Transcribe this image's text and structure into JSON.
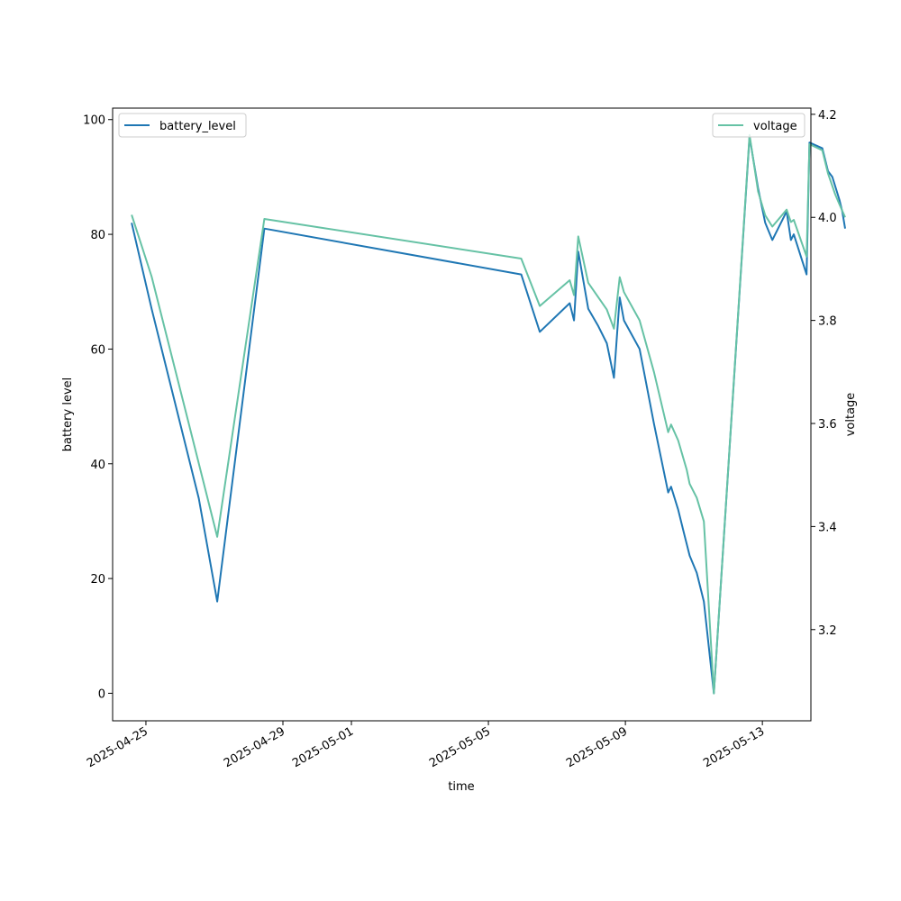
{
  "chart_data": {
    "type": "line",
    "xlabel": "time",
    "ylabel_left": "battery level",
    "ylabel_right": "voltage",
    "x_ticks": [
      "2025-04-25",
      "2025-04-29",
      "2025-05-01",
      "2025-05-05",
      "2025-05-09",
      "2025-05-13"
    ],
    "x_range": [
      "2025-04-24T00:40",
      "2025-05-14T10:00"
    ],
    "y_left_ticks": [
      0,
      20,
      40,
      60,
      80,
      100
    ],
    "y_left_range": [
      -4.8,
      102
    ],
    "y_right_ticks": [
      3.2,
      3.4,
      3.6,
      3.8,
      4.0,
      4.2
    ],
    "y_right_range": [
      3.023,
      4.212
    ],
    "legend_left": {
      "position": "upper-left",
      "label": "battery_level"
    },
    "legend_right": {
      "position": "upper-right",
      "label": "voltage"
    },
    "grid": false,
    "series": [
      {
        "name": "battery_level",
        "axis": "left",
        "color": "#1f77b4",
        "points": [
          [
            "2025-04-24T14:00",
            82
          ],
          [
            "2025-04-25T04:00",
            67
          ],
          [
            "2025-04-26T13:00",
            34
          ],
          [
            "2025-04-27T02:00",
            16
          ],
          [
            "2025-04-28T11:00",
            81
          ],
          [
            "2025-05-05T23:00",
            73
          ],
          [
            "2025-05-06T12:00",
            63
          ],
          [
            "2025-05-07T09:00",
            68
          ],
          [
            "2025-05-07T12:00",
            65
          ],
          [
            "2025-05-07T15:00",
            77
          ],
          [
            "2025-05-07T22:00",
            67
          ],
          [
            "2025-05-08T05:00",
            64
          ],
          [
            "2025-05-08T11:00",
            61
          ],
          [
            "2025-05-08T16:00",
            55
          ],
          [
            "2025-05-08T20:00",
            69
          ],
          [
            "2025-05-08T23:00",
            65
          ],
          [
            "2025-05-09T10:00",
            60
          ],
          [
            "2025-05-09T20:00",
            47
          ],
          [
            "2025-05-10T06:00",
            35
          ],
          [
            "2025-05-10T08:00",
            36
          ],
          [
            "2025-05-10T13:00",
            32
          ],
          [
            "2025-05-10T17:00",
            28
          ],
          [
            "2025-05-10T21:00",
            24
          ],
          [
            "2025-05-11T02:00",
            21
          ],
          [
            "2025-05-11T07:00",
            16
          ],
          [
            "2025-05-11T14:00",
            0
          ],
          [
            "2025-05-12T15:00",
            97
          ],
          [
            "2025-05-12T21:00",
            88
          ],
          [
            "2025-05-13T02:00",
            82
          ],
          [
            "2025-05-13T07:00",
            79
          ],
          [
            "2025-05-13T17:00",
            84
          ],
          [
            "2025-05-13T20:00",
            79
          ],
          [
            "2025-05-13T22:00",
            80
          ],
          [
            "2025-05-14T07:00",
            73
          ],
          [
            "2025-05-14T09:00",
            96
          ],
          [
            "2025-05-14T18:00",
            95
          ],
          [
            "2025-05-14T22:00",
            91
          ],
          [
            "2025-05-15T01:00",
            90
          ],
          [
            "2025-05-15T06:00",
            86
          ],
          [
            "2025-05-15T08:00",
            84
          ],
          [
            "2025-05-15T10:00",
            81
          ]
        ]
      },
      {
        "name": "voltage",
        "axis": "right",
        "color": "#66c2a5",
        "points": [
          [
            "2025-04-24T14:00",
            4.005
          ],
          [
            "2025-04-25T04:00",
            3.885
          ],
          [
            "2025-04-26T06:00",
            3.6
          ],
          [
            "2025-04-27T02:00",
            3.38
          ],
          [
            "2025-04-28T11:00",
            3.997
          ],
          [
            "2025-05-05T23:00",
            3.92
          ],
          [
            "2025-05-06T12:00",
            3.828
          ],
          [
            "2025-05-07T09:00",
            3.878
          ],
          [
            "2025-05-07T12:00",
            3.849
          ],
          [
            "2025-05-07T15:00",
            3.963
          ],
          [
            "2025-05-07T22:00",
            3.873
          ],
          [
            "2025-05-08T11:00",
            3.821
          ],
          [
            "2025-05-08T16:00",
            3.784
          ],
          [
            "2025-05-08T20:00",
            3.884
          ],
          [
            "2025-05-08T23:00",
            3.855
          ],
          [
            "2025-05-09T10:00",
            3.8
          ],
          [
            "2025-05-09T20:00",
            3.7
          ],
          [
            "2025-05-10T06:00",
            3.583
          ],
          [
            "2025-05-10T08:00",
            3.598
          ],
          [
            "2025-05-10T13:00",
            3.567
          ],
          [
            "2025-05-10T19:00",
            3.51
          ],
          [
            "2025-05-10T21:00",
            3.483
          ],
          [
            "2025-05-11T02:00",
            3.456
          ],
          [
            "2025-05-11T07:00",
            3.41
          ],
          [
            "2025-05-11T14:00",
            3.076
          ],
          [
            "2025-05-12T15:00",
            4.16
          ],
          [
            "2025-05-12T21:00",
            4.05
          ],
          [
            "2025-05-13T02:00",
            4.004
          ],
          [
            "2025-05-13T07:00",
            3.982
          ],
          [
            "2025-05-13T17:00",
            4.015
          ],
          [
            "2025-05-13T20:00",
            3.991
          ],
          [
            "2025-05-13T22:00",
            3.995
          ],
          [
            "2025-05-14T07:00",
            3.924
          ],
          [
            "2025-05-14T09:00",
            4.142
          ],
          [
            "2025-05-14T18:00",
            4.13
          ],
          [
            "2025-05-14T22:00",
            4.085
          ],
          [
            "2025-05-15T03:00",
            4.045
          ],
          [
            "2025-05-15T06:00",
            4.025
          ],
          [
            "2025-05-15T10:00",
            4.0
          ]
        ]
      }
    ]
  }
}
